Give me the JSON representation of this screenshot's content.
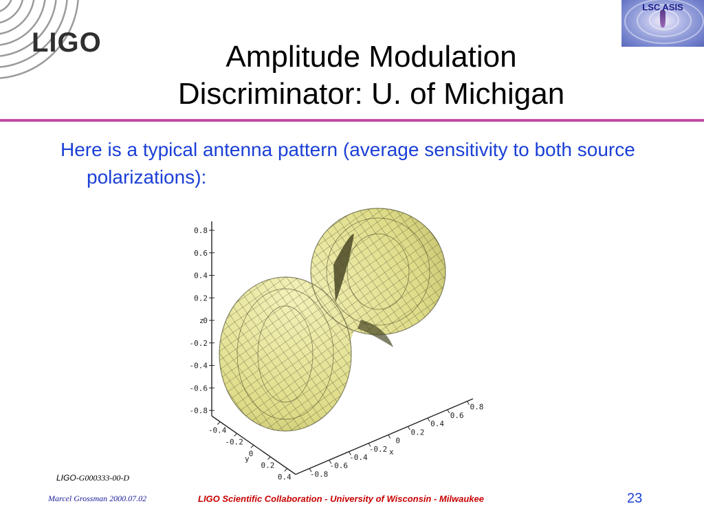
{
  "header": {
    "logo_text": "LIGO",
    "badge_label": "LSC ASIS",
    "title_line1": "Amplitude Modulation",
    "title_line2": "Discriminator: U. of Michigan"
  },
  "colors": {
    "title": "#000000",
    "body_text": "#1a3fd6",
    "rule": "#c04aa5",
    "footer_center": "#c80000",
    "footer_left": "#1a1a9a",
    "surface": "#e4e28a"
  },
  "content": {
    "bullet": "Here is a typical antenna pattern (average sensitivity to both source polarizations):"
  },
  "figure": {
    "z_ticks": [
      "0.8",
      "0.6",
      "0.4",
      "0.2",
      "0",
      "-0.2",
      "-0.4",
      "-0.6",
      "-0.8"
    ],
    "z_label": "z",
    "y_ticks": [
      "-0.4",
      "-0.2",
      "0",
      "0.2",
      "0.4"
    ],
    "y_label": "y",
    "x_ticks": [
      "0.8",
      "0.6",
      "0.4",
      "0.2",
      "0",
      "-0.2",
      "-0.4",
      "-0.6",
      "-0.8"
    ],
    "x_label": "x"
  },
  "footer": {
    "doc_id_prefix": "LIGO-",
    "doc_id_code": "G000333-00-D",
    "left": "Marcel Grossman 2000.07.02",
    "center": "LIGO Scientific Collaboration - University of Wisconsin - Milwaukee",
    "page_number": "23"
  }
}
